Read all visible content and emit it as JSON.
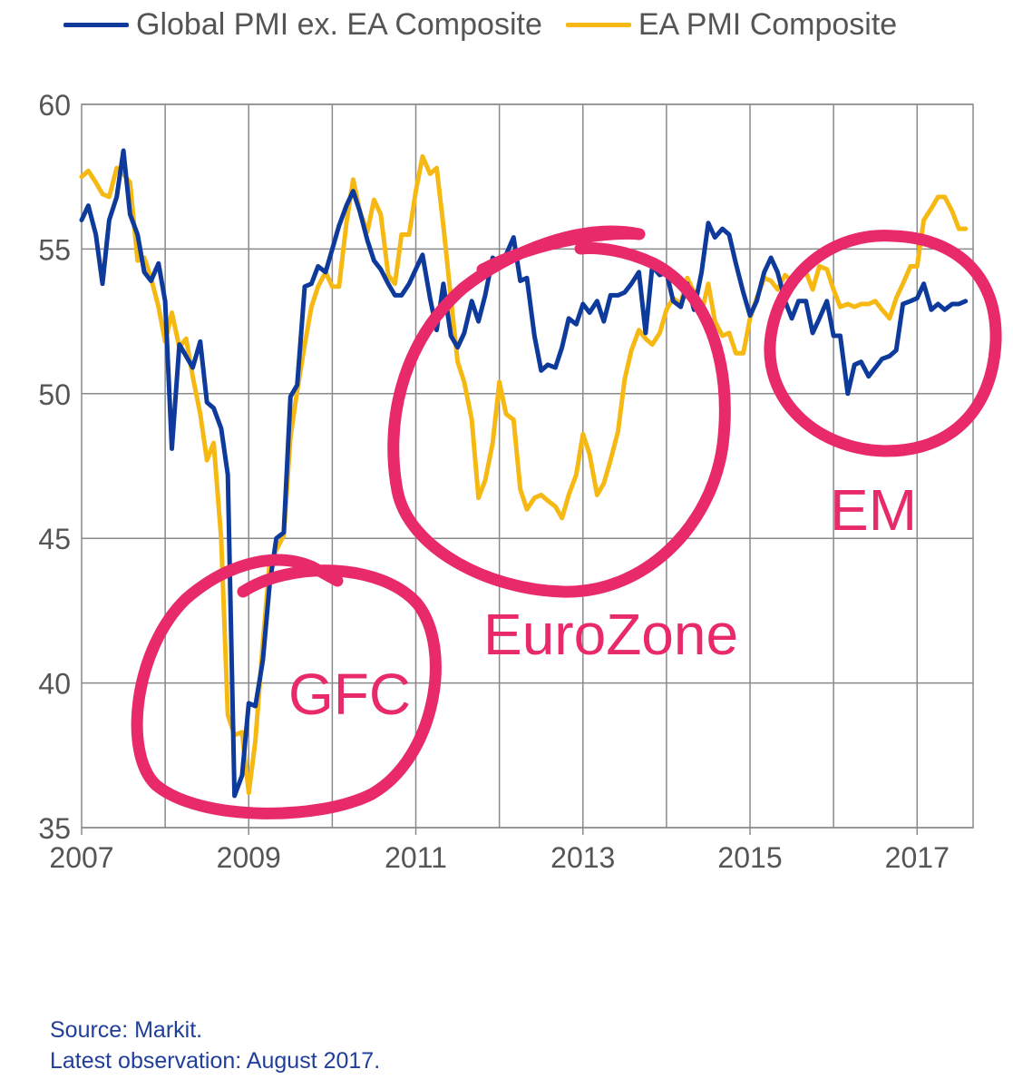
{
  "legend": {
    "items": [
      {
        "label": "Global PMI ex. EA Composite",
        "color": "#0d3a9b"
      },
      {
        "label": "EA PMI Composite",
        "color": "#f6b913"
      }
    ]
  },
  "source": {
    "line1": "Source: Markit.",
    "line2": "Latest observation: August 2017."
  },
  "annotations": {
    "gfc": "GFC",
    "eurozone": "EuroZone",
    "em": "EM",
    "circle_color": "#e8296a"
  },
  "chart_data": {
    "type": "line",
    "title": "",
    "xlabel": "",
    "ylabel": "",
    "xlim": [
      2007.0,
      2017.67
    ],
    "ylim": [
      35,
      60
    ],
    "x_ticks": [
      "2007",
      "2009",
      "2011",
      "2013",
      "2015",
      "2017"
    ],
    "y_ticks": [
      "35",
      "40",
      "45",
      "50",
      "55",
      "60"
    ],
    "grid": true,
    "legend_position": "top",
    "series": [
      {
        "name": "Global PMI ex. EA Composite",
        "color": "#0d3a9b",
        "x": [
          2007.0,
          2007.08,
          2007.17,
          2007.25,
          2007.33,
          2007.42,
          2007.5,
          2007.58,
          2007.67,
          2007.75,
          2007.83,
          2007.92,
          2008.0,
          2008.08,
          2008.17,
          2008.25,
          2008.33,
          2008.42,
          2008.5,
          2008.58,
          2008.67,
          2008.75,
          2008.83,
          2008.92,
          2009.0,
          2009.08,
          2009.17,
          2009.25,
          2009.33,
          2009.42,
          2009.5,
          2009.58,
          2009.67,
          2009.75,
          2009.83,
          2009.92,
          2010.0,
          2010.08,
          2010.17,
          2010.25,
          2010.33,
          2010.42,
          2010.5,
          2010.58,
          2010.67,
          2010.75,
          2010.83,
          2010.92,
          2011.0,
          2011.08,
          2011.17,
          2011.25,
          2011.33,
          2011.42,
          2011.5,
          2011.58,
          2011.67,
          2011.75,
          2011.83,
          2011.92,
          2012.0,
          2012.08,
          2012.17,
          2012.25,
          2012.33,
          2012.42,
          2012.5,
          2012.58,
          2012.67,
          2012.75,
          2012.83,
          2012.92,
          2013.0,
          2013.08,
          2013.17,
          2013.25,
          2013.33,
          2013.42,
          2013.5,
          2013.58,
          2013.67,
          2013.75,
          2013.83,
          2013.92,
          2014.0,
          2014.08,
          2014.17,
          2014.25,
          2014.33,
          2014.42,
          2014.5,
          2014.58,
          2014.67,
          2014.75,
          2014.83,
          2014.92,
          2015.0,
          2015.08,
          2015.17,
          2015.25,
          2015.33,
          2015.42,
          2015.5,
          2015.58,
          2015.67,
          2015.75,
          2015.83,
          2015.92,
          2016.0,
          2016.08,
          2016.17,
          2016.25,
          2016.33,
          2016.42,
          2016.5,
          2016.58,
          2016.67,
          2016.75,
          2016.83,
          2016.92,
          2017.0,
          2017.08,
          2017.17,
          2017.25,
          2017.33,
          2017.42,
          2017.5,
          2017.58
        ],
        "values": [
          56.0,
          56.5,
          55.5,
          53.8,
          56.0,
          56.8,
          58.4,
          56.2,
          55.5,
          54.2,
          53.9,
          54.5,
          53.2,
          48.1,
          51.7,
          51.3,
          50.9,
          51.8,
          49.7,
          49.5,
          48.8,
          47.2,
          36.1,
          36.8,
          39.3,
          39.2,
          40.8,
          43.4,
          45.0,
          45.2,
          49.9,
          50.3,
          53.7,
          53.8,
          54.4,
          54.2,
          55.0,
          55.8,
          56.5,
          57.0,
          56.3,
          55.3,
          54.6,
          54.3,
          53.8,
          53.4,
          53.4,
          53.8,
          54.3,
          54.8,
          53.3,
          52.2,
          53.8,
          52.0,
          51.6,
          52.1,
          53.2,
          52.5,
          53.4,
          54.7,
          54.5,
          54.8,
          55.4,
          53.9,
          54.0,
          52.0,
          50.8,
          51.0,
          50.9,
          51.6,
          52.6,
          52.4,
          53.1,
          52.8,
          53.2,
          52.5,
          53.4,
          53.4,
          53.5,
          53.8,
          54.2,
          52.1,
          54.4,
          54.1,
          54.2,
          53.2,
          53.0,
          53.8,
          52.9,
          54.2,
          55.9,
          55.4,
          55.7,
          55.5,
          54.5,
          53.5,
          52.7,
          53.2,
          54.2,
          54.7,
          54.2,
          53.2,
          52.6,
          53.2,
          53.2,
          52.1,
          52.6,
          53.2,
          52.0,
          52.0,
          50.0,
          51.0,
          51.1,
          50.6,
          50.9,
          51.2,
          51.3,
          51.5,
          53.1,
          53.2,
          53.3,
          53.8,
          52.9,
          53.1,
          52.9,
          53.1,
          53.1,
          53.2
        ]
      },
      {
        "name": "EA PMI Composite",
        "color": "#f6b913",
        "x": [
          2007.0,
          2007.08,
          2007.17,
          2007.25,
          2007.33,
          2007.42,
          2007.5,
          2007.58,
          2007.67,
          2007.75,
          2007.83,
          2007.92,
          2008.0,
          2008.08,
          2008.17,
          2008.25,
          2008.33,
          2008.42,
          2008.5,
          2008.58,
          2008.67,
          2008.75,
          2008.83,
          2008.92,
          2009.0,
          2009.08,
          2009.17,
          2009.25,
          2009.33,
          2009.42,
          2009.5,
          2009.58,
          2009.67,
          2009.75,
          2009.83,
          2009.92,
          2010.0,
          2010.08,
          2010.17,
          2010.25,
          2010.33,
          2010.42,
          2010.5,
          2010.58,
          2010.67,
          2010.75,
          2010.83,
          2010.92,
          2011.0,
          2011.08,
          2011.17,
          2011.25,
          2011.33,
          2011.42,
          2011.5,
          2011.58,
          2011.67,
          2011.75,
          2011.83,
          2011.92,
          2012.0,
          2012.08,
          2012.17,
          2012.25,
          2012.33,
          2012.42,
          2012.5,
          2012.58,
          2012.67,
          2012.75,
          2012.83,
          2012.92,
          2013.0,
          2013.08,
          2013.17,
          2013.25,
          2013.33,
          2013.42,
          2013.5,
          2013.58,
          2013.67,
          2013.75,
          2013.83,
          2013.92,
          2014.0,
          2014.08,
          2014.17,
          2014.25,
          2014.33,
          2014.42,
          2014.5,
          2014.58,
          2014.67,
          2014.75,
          2014.83,
          2014.92,
          2015.0,
          2015.08,
          2015.17,
          2015.25,
          2015.33,
          2015.42,
          2015.5,
          2015.58,
          2015.67,
          2015.75,
          2015.83,
          2015.92,
          2016.0,
          2016.08,
          2016.17,
          2016.25,
          2016.33,
          2016.42,
          2016.5,
          2016.58,
          2016.67,
          2016.75,
          2016.83,
          2016.92,
          2017.0,
          2017.08,
          2017.17,
          2017.25,
          2017.33,
          2017.42,
          2017.5,
          2017.58
        ],
        "values": [
          57.5,
          57.7,
          57.3,
          56.9,
          56.8,
          57.8,
          57.6,
          57.3,
          54.6,
          54.7,
          54.0,
          53.0,
          51.8,
          52.8,
          51.6,
          51.9,
          50.6,
          49.3,
          47.7,
          48.3,
          45.0,
          38.9,
          38.2,
          38.3,
          36.2,
          38.0,
          41.4,
          44.1,
          44.6,
          45.1,
          48.5,
          50.1,
          51.7,
          53.0,
          53.7,
          54.2,
          53.7,
          53.7,
          55.9,
          57.4,
          56.3,
          55.6,
          56.7,
          56.2,
          54.1,
          53.8,
          55.5,
          55.5,
          57.0,
          58.2,
          57.6,
          57.8,
          55.8,
          53.3,
          51.1,
          50.4,
          49.1,
          46.4,
          47.0,
          48.3,
          50.4,
          49.3,
          49.1,
          46.7,
          46.0,
          46.4,
          46.5,
          46.3,
          46.1,
          45.7,
          46.5,
          47.2,
          48.6,
          47.9,
          46.5,
          46.9,
          47.7,
          48.7,
          50.5,
          51.5,
          52.2,
          51.9,
          51.7,
          52.1,
          52.9,
          53.3,
          53.1,
          54.0,
          53.5,
          52.8,
          53.8,
          52.5,
          52.0,
          52.1,
          51.4,
          51.4,
          52.6,
          53.3,
          54.0,
          53.9,
          53.6,
          54.1,
          53.9,
          54.3,
          54.2,
          53.6,
          54.4,
          54.3,
          53.6,
          53.0,
          53.1,
          53.0,
          53.1,
          53.1,
          53.2,
          52.9,
          52.6,
          53.3,
          53.8,
          54.4,
          54.4,
          56.0,
          56.4,
          56.8,
          56.8,
          56.3,
          55.7,
          55.7
        ]
      }
    ]
  }
}
